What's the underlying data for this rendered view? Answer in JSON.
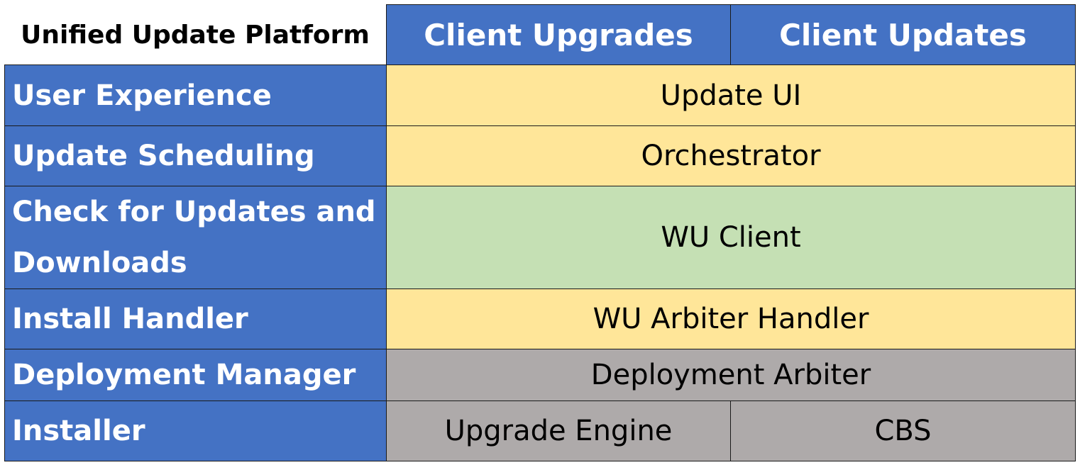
{
  "title": "Unified Update Platform",
  "columns": [
    "Client Upgrades",
    "Client Updates"
  ],
  "rows": [
    {
      "label": "User Experience",
      "cells": [
        "Update UI"
      ]
    },
    {
      "label": "Update Scheduling",
      "cells": [
        "Orchestrator"
      ]
    },
    {
      "label": "Check for Updates and Downloads",
      "cells": [
        "WU Client"
      ]
    },
    {
      "label": "Install Handler",
      "cells": [
        "WU Arbiter Handler"
      ]
    },
    {
      "label": "Deployment Manager",
      "cells": [
        "Deployment Arbiter"
      ]
    },
    {
      "label": "Installer",
      "cells": [
        "Upgrade Engine",
        "CBS"
      ]
    }
  ],
  "colors": {
    "header": "#4472C4",
    "yellow": "#FFE699",
    "green": "#C5E0B4",
    "gray": "#AEAAAA"
  }
}
